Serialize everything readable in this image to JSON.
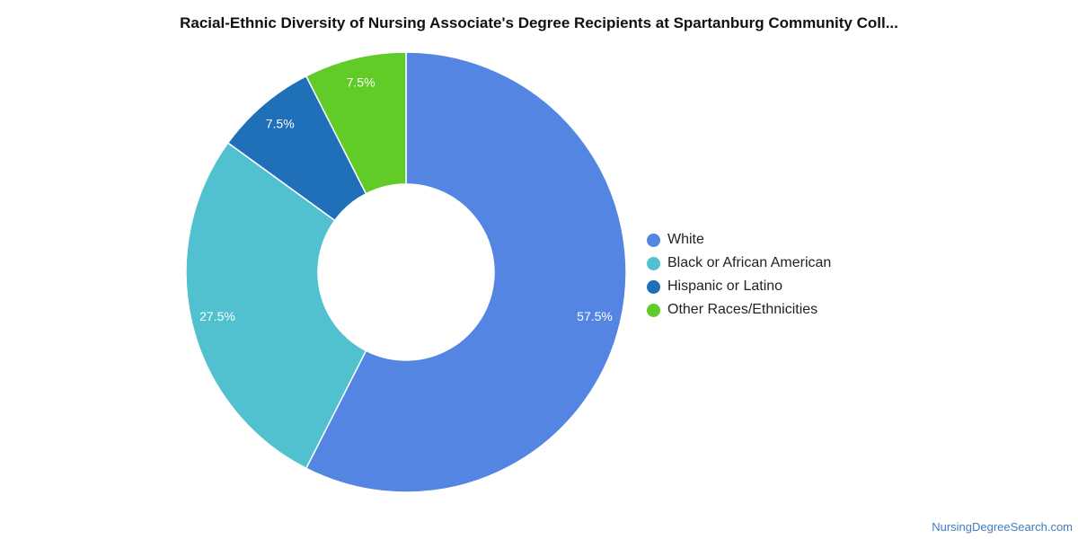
{
  "chart_data": {
    "type": "pie",
    "title": "Racial-Ethnic Diversity of Nursing Associate's Degree Recipients at Spartanburg Community Coll...",
    "donut": true,
    "categories": [
      "White",
      "Black or African American",
      "Hispanic or Latino",
      "Other Races/Ethnicities"
    ],
    "values": [
      57.5,
      27.5,
      7.5,
      7.5
    ],
    "labels": [
      "57.5%",
      "27.5%",
      "7.5%",
      "7.5%"
    ],
    "colors": [
      "#5585e3",
      "#52c1cf",
      "#1f6fb9",
      "#61cc27"
    ],
    "legend_position": "right"
  },
  "watermark": "NursingDegreeSearch.com"
}
